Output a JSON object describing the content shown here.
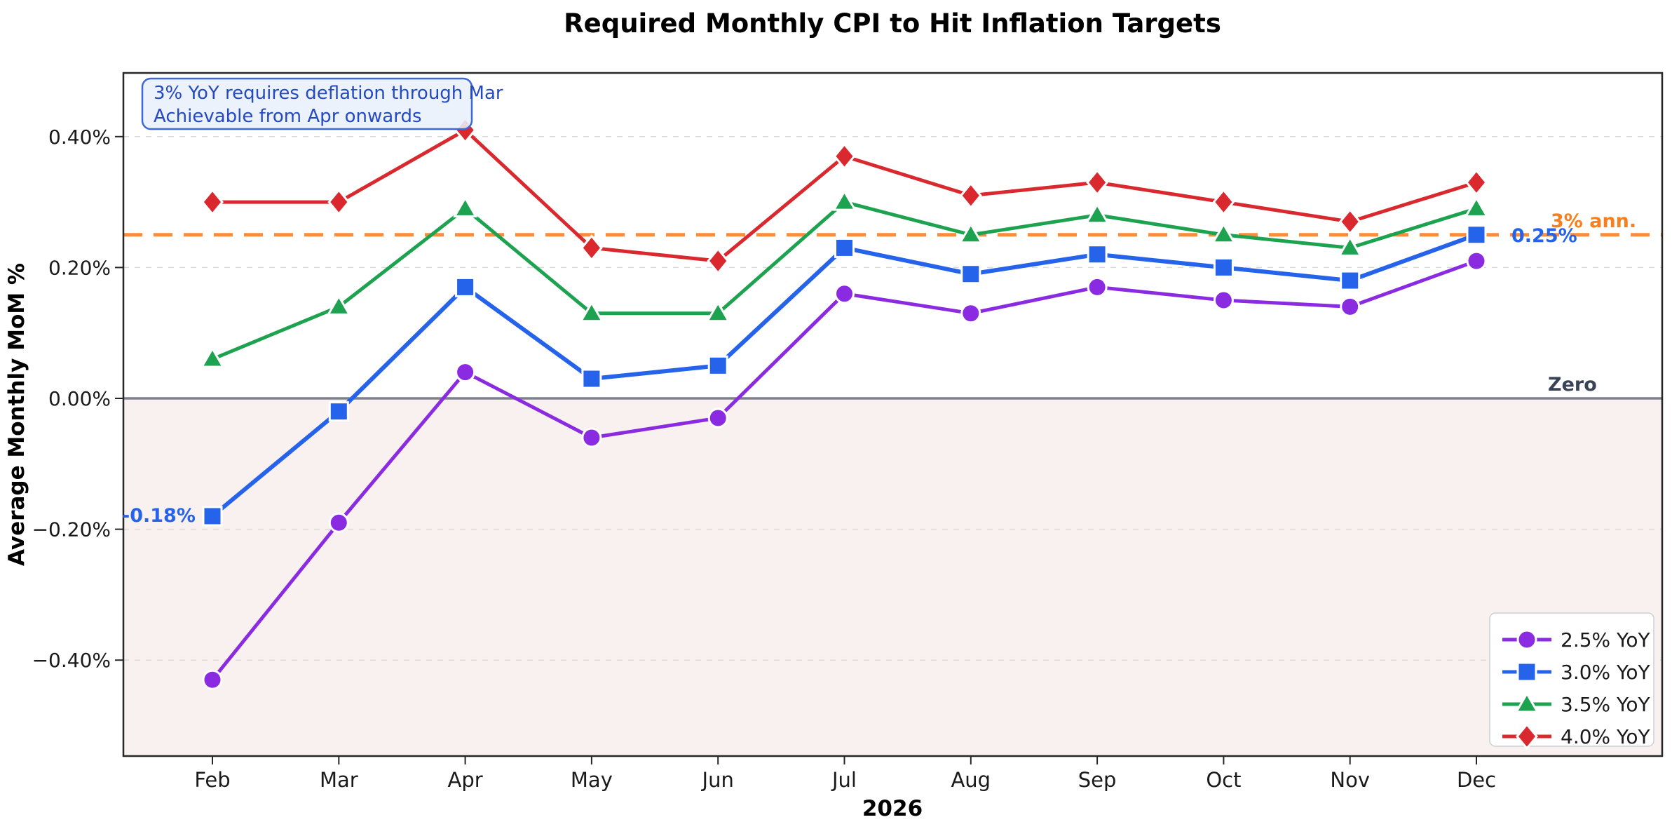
{
  "title": "Required Monthly CPI to Hit Inflation Targets",
  "xlabel": "2026",
  "ylabel": "Average Monthly MoM %",
  "annotation_box": {
    "line1": "3% YoY requires deflation through Mar",
    "line2": "Achievable from Apr onwards"
  },
  "labels": {
    "start_value": "-0.18%",
    "end_value": "0.25%",
    "target_line": "3% ann.",
    "zero_line": "Zero"
  },
  "colors": {
    "target_line": "#fb8c3c",
    "target_label": "#f87f1e",
    "zero_line": "#7d818c",
    "zero_label": "#3a4356",
    "below_zero_fill": "#f9f0f0",
    "grid": "#d9d9d9",
    "spine": "#262626",
    "annotation_fill": "#e9f0fc",
    "annotation_border": "#3e68d8",
    "annotation_text": "#2549c0",
    "value_label_blue": "#2563eb",
    "legend_border": "#cccfd6",
    "legend_fill": "#ffffff"
  },
  "chart_data": {
    "type": "line",
    "title": "Required Monthly CPI to Hit Inflation Targets",
    "xlabel": "2026",
    "ylabel": "Average Monthly MoM %",
    "categories": [
      "Feb",
      "Mar",
      "Apr",
      "May",
      "Jun",
      "Jul",
      "Aug",
      "Sep",
      "Oct",
      "Nov",
      "Dec"
    ],
    "series": [
      {
        "name": "2.5% YoY",
        "marker": "circle",
        "color": "#8a2be2",
        "values": [
          -0.43,
          -0.19,
          0.04,
          -0.06,
          -0.03,
          0.16,
          0.13,
          0.17,
          0.15,
          0.14,
          0.21
        ]
      },
      {
        "name": "3.0% YoY",
        "marker": "square",
        "color": "#2563eb",
        "values": [
          -0.18,
          -0.02,
          0.17,
          0.03,
          0.05,
          0.23,
          0.19,
          0.22,
          0.2,
          0.18,
          0.25
        ]
      },
      {
        "name": "3.5% YoY",
        "marker": "triangle",
        "color": "#1da250",
        "values": [
          0.06,
          0.14,
          0.29,
          0.13,
          0.13,
          0.3,
          0.25,
          0.28,
          0.25,
          0.23,
          0.29
        ]
      },
      {
        "name": "4.0% YoY",
        "marker": "diamond",
        "color": "#d9292e",
        "values": [
          0.3,
          0.3,
          0.41,
          0.23,
          0.21,
          0.37,
          0.31,
          0.33,
          0.3,
          0.27,
          0.33
        ]
      }
    ],
    "yticks": [
      0.4,
      0.2,
      0.0,
      -0.2,
      -0.4
    ],
    "ytick_labels": [
      "0.40%",
      "0.20%",
      "0.00%",
      "−0.20%",
      "−0.40%"
    ],
    "ylim": [
      -0.546,
      0.497
    ],
    "target_line_value": 0.25,
    "zero_line_value": 0.0,
    "grid": "horizontal-dashed",
    "legend_position": "lower right",
    "annotations": [
      "3% YoY requires deflation through Mar",
      "Achievable from Apr onwards",
      "-0.18%",
      "0.25%",
      "3% ann.",
      "Zero"
    ]
  }
}
